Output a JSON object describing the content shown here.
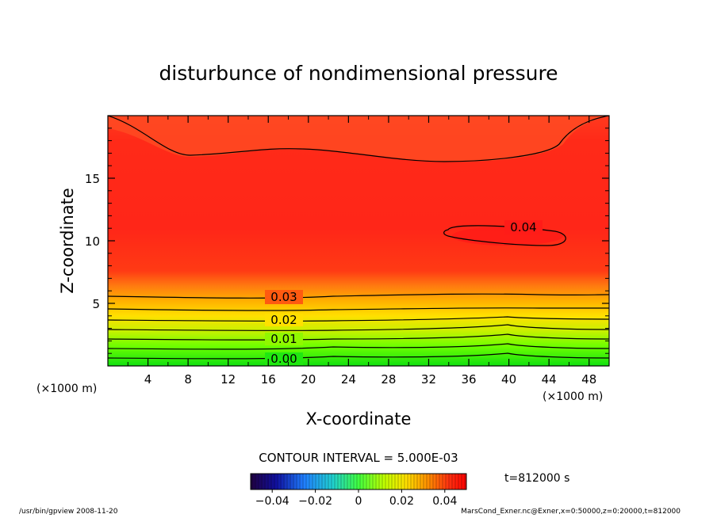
{
  "chart_data": {
    "type": "heatmap",
    "title": "disturbunce of nondimensional pressure",
    "xlabel": "X-coordinate",
    "ylabel": "Z-coordinate",
    "x_unit_left": "(×1000 m)",
    "x_unit_right": "(×1000 m)",
    "xlim": [
      0,
      50
    ],
    "ylim": [
      0,
      20
    ],
    "x_ticks": [
      "4",
      "8",
      "12",
      "16",
      "20",
      "24",
      "28",
      "32",
      "36",
      "40",
      "44",
      "48"
    ],
    "y_ticks": [
      "5",
      "10",
      "15"
    ],
    "x_tick_values": [
      4,
      8,
      12,
      16,
      20,
      24,
      28,
      32,
      36,
      40,
      44,
      48
    ],
    "y_tick_values": [
      5,
      10,
      15
    ],
    "contour_interval_text": "CONTOUR INTERVAL = 5.000E-03",
    "contour_labels": [
      "0.00",
      "0.01",
      "0.02",
      "0.03",
      "0.04"
    ],
    "colorbar": {
      "ticks": [
        "−0.04",
        "−0.02",
        "0",
        "0.02",
        "0.04"
      ],
      "tick_values": [
        -0.04,
        -0.02,
        0,
        0.02,
        0.04
      ],
      "range": [
        -0.05,
        0.05
      ]
    },
    "time_label": "t=812000 s"
  },
  "footer": {
    "left": "/usr/bin/gpview   2008-11-20",
    "right": "MarsCond_Exner.nc@Exner,x=0:50000,z=0:20000,t=812000"
  }
}
